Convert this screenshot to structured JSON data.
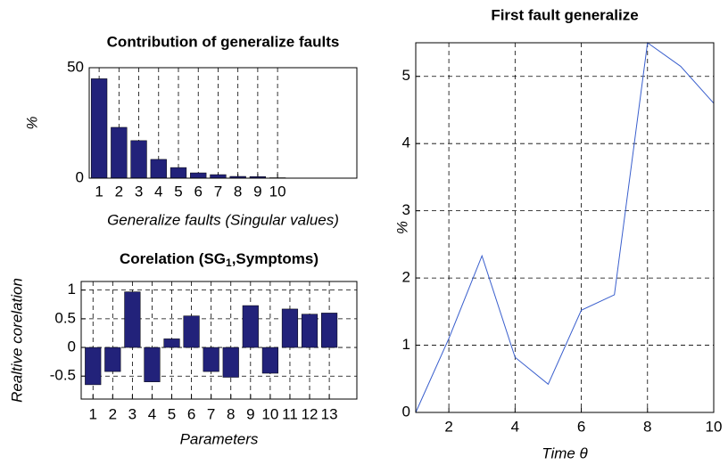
{
  "chart_data": [
    {
      "type": "bar",
      "title": "Contribution of generalize faults",
      "categories": [
        "1",
        "2",
        "3",
        "4",
        "5",
        "6",
        "7",
        "8",
        "9",
        "10"
      ],
      "values": [
        45,
        23,
        17,
        8.5,
        4.8,
        2.4,
        1.6,
        0.8,
        0.7,
        0.2
      ],
      "color": "#22227a",
      "xlim": [
        0.5,
        14
      ],
      "ylim": [
        0,
        50
      ],
      "yticks": [
        0,
        50
      ],
      "grid": true,
      "x_label": "Generalize faults (Singular values)",
      "y_label": "%"
    },
    {
      "type": "bar",
      "title": [
        "Corelation (SG",
        "1",
        ",Symptoms)"
      ],
      "categories": [
        "1",
        "2",
        "3",
        "4",
        "5",
        "6",
        "7",
        "8",
        "9",
        "10",
        "11",
        "12",
        "13"
      ],
      "values": [
        -0.65,
        -0.42,
        0.97,
        -0.6,
        0.15,
        0.55,
        -0.42,
        -0.52,
        0.73,
        -0.45,
        0.67,
        0.58,
        0.6
      ],
      "color": "#22227a",
      "xlim": [
        0.4,
        14.4
      ],
      "ylim": [
        -0.9,
        1.15
      ],
      "yticks": [
        -0.5,
        0,
        0.5,
        1
      ],
      "grid": true,
      "x_label": "Parameters",
      "y_label": "Realtive corelation"
    },
    {
      "type": "line",
      "title": "First fault generalize",
      "x": [
        1,
        2,
        3,
        4,
        5,
        6,
        7,
        8,
        9,
        10
      ],
      "values": [
        0,
        1.1,
        2.33,
        0.82,
        0.42,
        1.52,
        1.75,
        5.5,
        5.15,
        4.6
      ],
      "color": "#3a5fcd",
      "xlim": [
        1,
        10
      ],
      "xticks": [
        2,
        4,
        6,
        8,
        10
      ],
      "ylim": [
        0,
        5.5
      ],
      "yticks": [
        0,
        1,
        2,
        3,
        4,
        5
      ],
      "grid": true,
      "x_label": "Time θ",
      "y_label": "%"
    }
  ]
}
